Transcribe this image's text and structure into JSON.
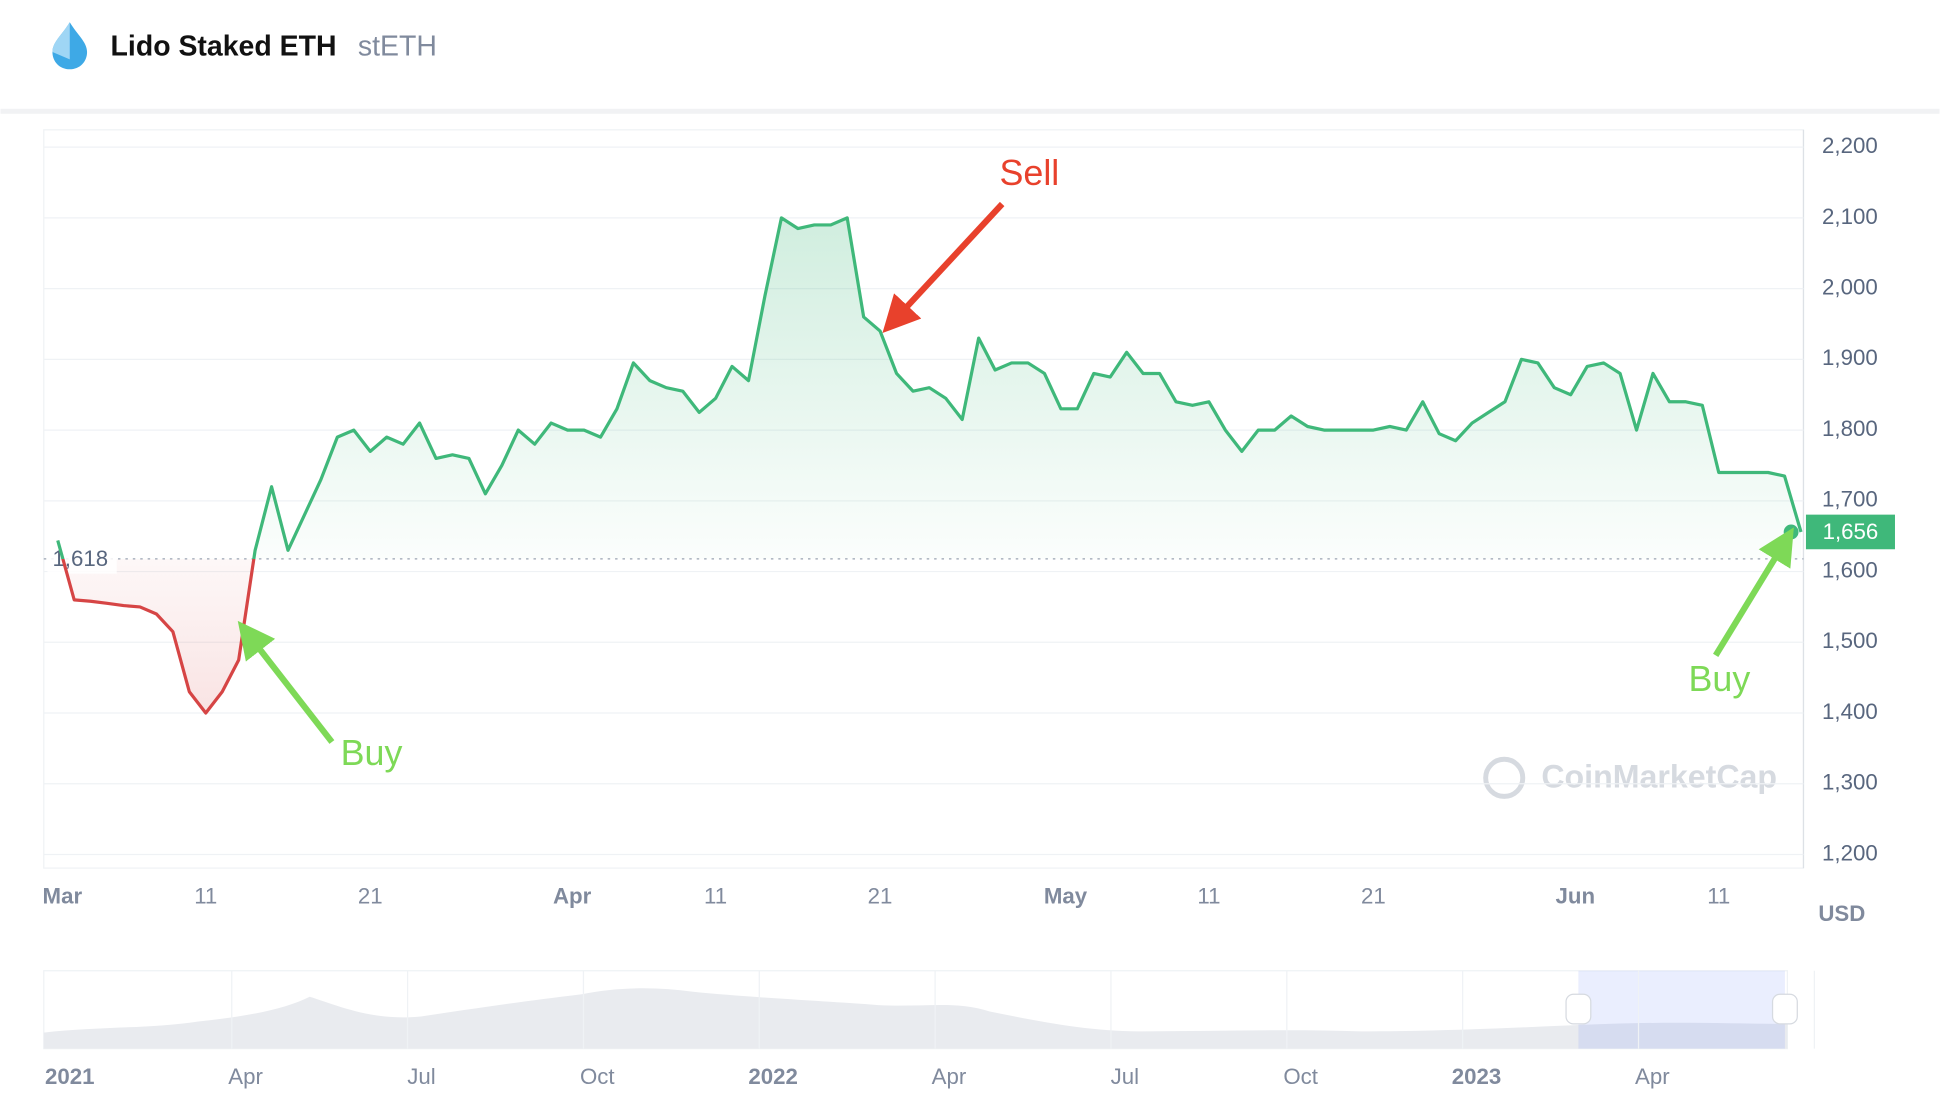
{
  "header": {
    "title": "Lido Staked ETH",
    "symbol": "stETH"
  },
  "chart_data": {
    "type": "line",
    "unit_label": "USD",
    "watermark": "CoinMarketCap",
    "x": [
      "2023-03-02",
      "2023-03-03",
      "2023-03-04",
      "2023-03-05",
      "2023-03-06",
      "2023-03-07",
      "2023-03-08",
      "2023-03-09",
      "2023-03-10",
      "2023-03-11",
      "2023-03-12",
      "2023-03-13",
      "2023-03-14",
      "2023-03-15",
      "2023-03-16",
      "2023-03-17",
      "2023-03-18",
      "2023-03-19",
      "2023-03-20",
      "2023-03-21",
      "2023-03-22",
      "2023-03-23",
      "2023-03-24",
      "2023-03-25",
      "2023-03-26",
      "2023-03-27",
      "2023-03-28",
      "2023-03-29",
      "2023-03-30",
      "2023-03-31",
      "2023-04-01",
      "2023-04-02",
      "2023-04-03",
      "2023-04-04",
      "2023-04-05",
      "2023-04-06",
      "2023-04-07",
      "2023-04-08",
      "2023-04-09",
      "2023-04-10",
      "2023-04-11",
      "2023-04-12",
      "2023-04-13",
      "2023-04-14",
      "2023-04-15",
      "2023-04-16",
      "2023-04-17",
      "2023-04-18",
      "2023-04-19",
      "2023-04-20",
      "2023-04-21",
      "2023-04-22",
      "2023-04-23",
      "2023-04-24",
      "2023-04-25",
      "2023-04-26",
      "2023-04-27",
      "2023-04-28",
      "2023-04-29",
      "2023-04-30",
      "2023-05-01",
      "2023-05-02",
      "2023-05-03",
      "2023-05-04",
      "2023-05-05",
      "2023-05-06",
      "2023-05-07",
      "2023-05-08",
      "2023-05-09",
      "2023-05-10",
      "2023-05-11",
      "2023-05-12",
      "2023-05-13",
      "2023-05-14",
      "2023-05-15",
      "2023-05-16",
      "2023-05-17",
      "2023-05-18",
      "2023-05-19",
      "2023-05-20",
      "2023-05-21",
      "2023-05-22",
      "2023-05-23",
      "2023-05-24",
      "2023-05-25",
      "2023-05-26",
      "2023-05-27",
      "2023-05-28",
      "2023-05-29",
      "2023-05-30",
      "2023-05-31",
      "2023-06-01",
      "2023-06-02",
      "2023-06-03",
      "2023-06-04",
      "2023-06-05",
      "2023-06-06",
      "2023-06-07",
      "2023-06-08",
      "2023-06-09",
      "2023-06-10",
      "2023-06-11",
      "2023-06-12",
      "2023-06-13",
      "2023-06-14",
      "2023-06-15",
      "2023-06-16"
    ],
    "series": [
      {
        "name": "stETH",
        "color": "#3fb87a",
        "color_below": "#d64545",
        "values": [
          1644,
          1560,
          1558,
          1555,
          1552,
          1550,
          1540,
          1515,
          1430,
          1400,
          1430,
          1475,
          1630,
          1720,
          1630,
          1680,
          1730,
          1790,
          1800,
          1770,
          1790,
          1780,
          1810,
          1760,
          1765,
          1760,
          1710,
          1750,
          1800,
          1780,
          1810,
          1800,
          1800,
          1790,
          1830,
          1895,
          1870,
          1860,
          1855,
          1825,
          1845,
          1890,
          1870,
          1990,
          2100,
          2085,
          2090,
          2090,
          2100,
          1960,
          1940,
          1880,
          1855,
          1860,
          1845,
          1815,
          1930,
          1885,
          1895,
          1895,
          1880,
          1830,
          1830,
          1880,
          1875,
          1910,
          1880,
          1880,
          1840,
          1835,
          1840,
          1800,
          1770,
          1800,
          1800,
          1820,
          1805,
          1800,
          1800,
          1800,
          1800,
          1805,
          1800,
          1840,
          1795,
          1785,
          1810,
          1825,
          1840,
          1900,
          1895,
          1860,
          1850,
          1890,
          1895,
          1880,
          1800,
          1880,
          1840,
          1840,
          1835,
          1740,
          1740,
          1740,
          1740,
          1735,
          1656
        ]
      }
    ],
    "last_value": {
      "value": 1656,
      "label": "1,656"
    },
    "baseline": {
      "value": 1618,
      "label": "1,618"
    },
    "xlim": [
      "2023-03-01",
      "2023-06-16"
    ],
    "xticks": [
      {
        "value": "2023-03-01",
        "label": "Mar"
      },
      {
        "value": "2023-03-11",
        "label": "11"
      },
      {
        "value": "2023-03-21",
        "label": "21"
      },
      {
        "value": "2023-04-01",
        "label": "Apr"
      },
      {
        "value": "2023-04-11",
        "label": "11"
      },
      {
        "value": "2023-04-21",
        "label": "21"
      },
      {
        "value": "2023-05-01",
        "label": "May"
      },
      {
        "value": "2023-05-11",
        "label": "11"
      },
      {
        "value": "2023-05-21",
        "label": "21"
      },
      {
        "value": "2023-06-01",
        "label": "Jun"
      },
      {
        "value": "2023-06-11",
        "label": "11"
      }
    ],
    "ylim": [
      1200,
      2200
    ],
    "yticks": [
      {
        "value": 1200,
        "label": "1,200"
      },
      {
        "value": 1300,
        "label": "1,300"
      },
      {
        "value": 1400,
        "label": "1,400"
      },
      {
        "value": 1500,
        "label": "1,500"
      },
      {
        "value": 1600,
        "label": "1,600"
      },
      {
        "value": 1700,
        "label": "1,700"
      },
      {
        "value": 1800,
        "label": "1,800"
      },
      {
        "value": 1900,
        "label": "1,900"
      },
      {
        "value": 2000,
        "label": "2,000"
      },
      {
        "value": 2100,
        "label": "2,100"
      },
      {
        "value": 2200,
        "label": "2,200"
      }
    ],
    "grid": true,
    "annotations": [
      {
        "text": "Sell",
        "color": "#e8412c"
      },
      {
        "text": "Buy",
        "color": "#7ed957"
      },
      {
        "text": "Buy",
        "color": "#7ed957"
      }
    ],
    "navigator_labels": [
      "2021",
      "Apr",
      "Jul",
      "Oct",
      "2022",
      "Apr",
      "Jul",
      "Oct",
      "2023",
      "Apr"
    ]
  }
}
